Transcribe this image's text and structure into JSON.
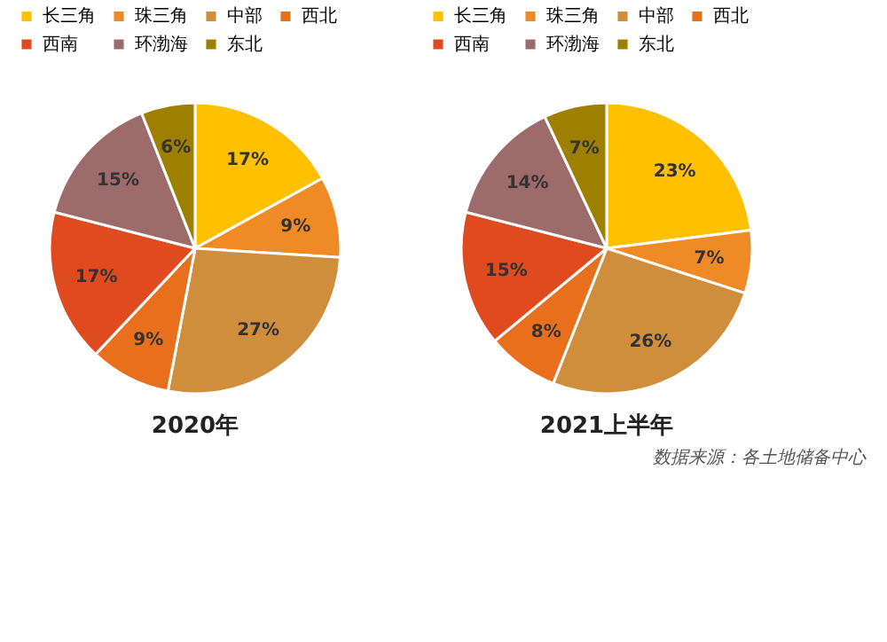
{
  "chart_data": [
    {
      "type": "pie",
      "title": "2020年",
      "categories": [
        "长三角",
        "珠三角",
        "中部",
        "西北",
        "西南",
        "环渤海",
        "东北"
      ],
      "values": [
        17,
        9,
        27,
        9,
        17,
        15,
        6
      ],
      "value_labels": [
        "17%",
        "9%",
        "27%",
        "9%",
        "17%",
        "15%",
        "6%"
      ],
      "colors": [
        "#ffc000",
        "#f08a24",
        "#d08e3c",
        "#e8701c",
        "#e04a1f",
        "#9e6b6b",
        "#9e7f00"
      ],
      "legend": "top"
    },
    {
      "type": "pie",
      "title": "2021上半年",
      "categories": [
        "长三角",
        "珠三角",
        "中部",
        "西北",
        "西南",
        "环渤海",
        "东北"
      ],
      "values": [
        23,
        7,
        26,
        8,
        15,
        14,
        7
      ],
      "value_labels": [
        "23%",
        "7%",
        "26%",
        "8%",
        "15%",
        "14%",
        "7%"
      ],
      "colors": [
        "#ffc000",
        "#f08a24",
        "#d08e3c",
        "#e8701c",
        "#e04a1f",
        "#9e6b6b",
        "#9e7f00"
      ],
      "legend": "top",
      "annotations": [
        "数据来源：各土地储备中心"
      ]
    }
  ]
}
